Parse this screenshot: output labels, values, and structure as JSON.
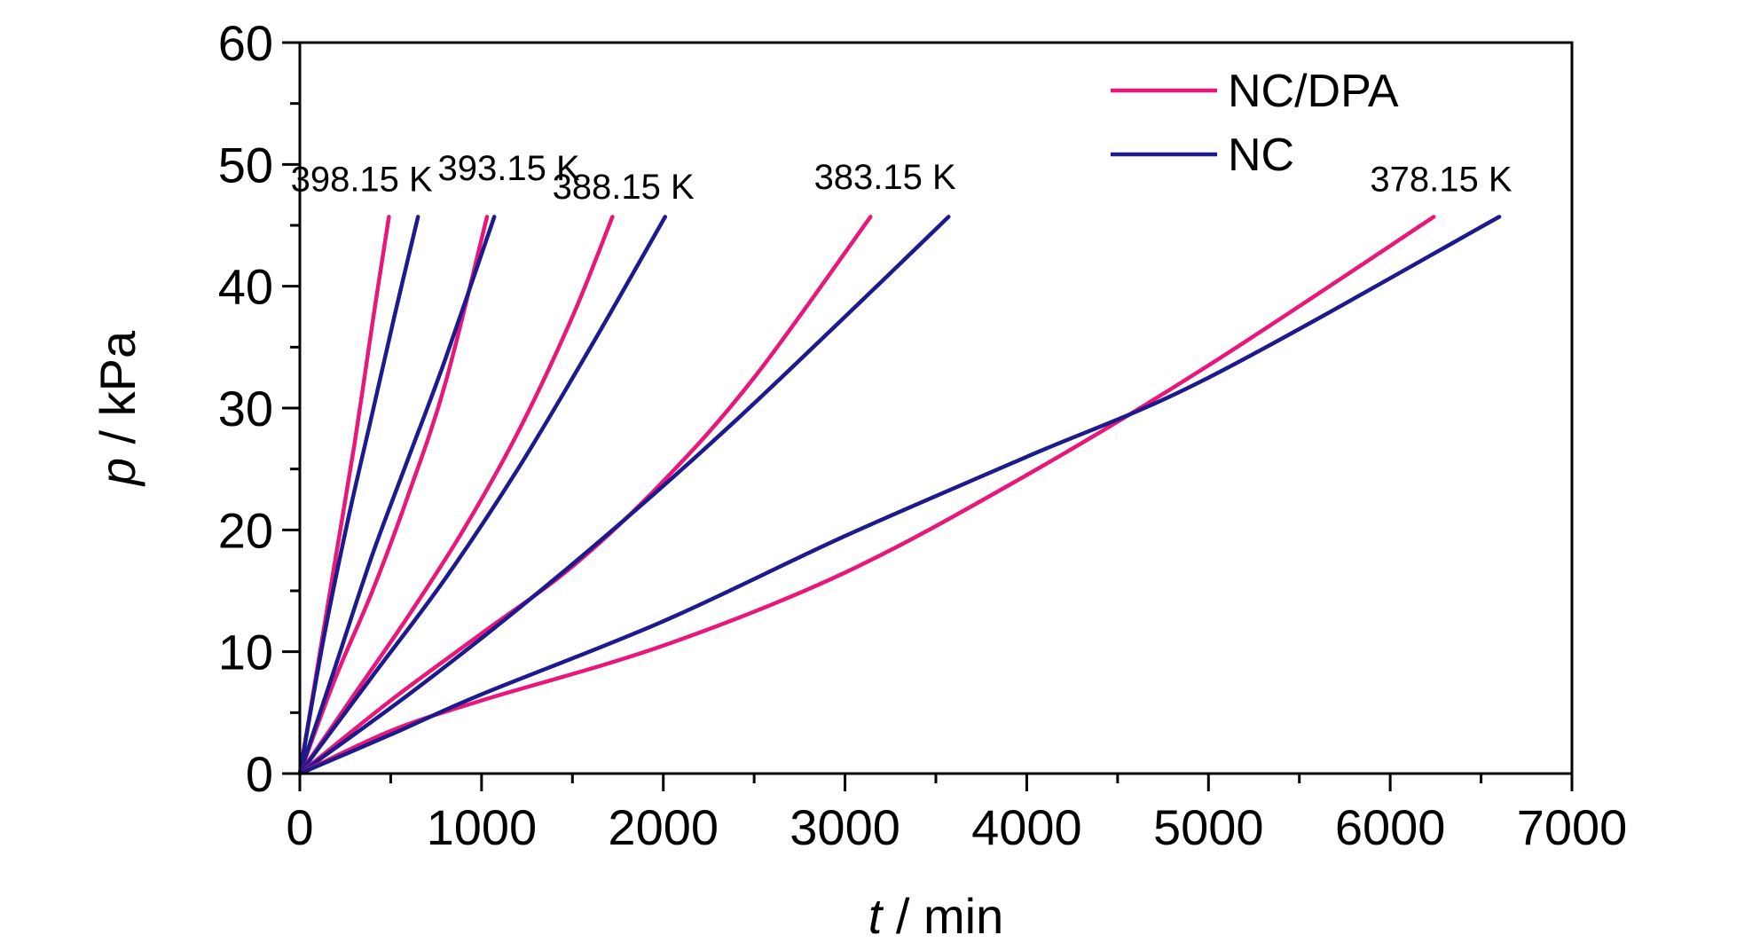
{
  "chart_data": {
    "type": "line",
    "xlabel": {
      "var": "t",
      "unit": " / min"
    },
    "ylabel": {
      "var": "p",
      "unit": " / kPa"
    },
    "xlim": [
      0,
      7000
    ],
    "ylim": [
      0,
      60
    ],
    "x_ticks": [
      0,
      1000,
      2000,
      3000,
      4000,
      5000,
      6000,
      7000
    ],
    "y_ticks": [
      0,
      10,
      20,
      30,
      40,
      50,
      60
    ],
    "grid": false,
    "legend_position": "top-right",
    "legend": [
      {
        "name": "NC/DPA",
        "color": "#e8177a"
      },
      {
        "name": "NC",
        "color": "#1c1a8c"
      }
    ],
    "series": [
      {
        "name": "NC/DPA",
        "group": "398.15 K",
        "color": "#e8177a",
        "x": [
          0,
          100,
          200,
          300,
          400,
          490
        ],
        "y": [
          0,
          9,
          18,
          27,
          37,
          45.7
        ]
      },
      {
        "name": "NC",
        "group": "398.15 K",
        "color": "#1c1a8c",
        "x": [
          0,
          130,
          260,
          390,
          520,
          650
        ],
        "y": [
          0,
          11,
          20.5,
          29,
          37.5,
          45.7
        ]
      },
      {
        "name": "NC/DPA",
        "group": "393.15 K",
        "color": "#e8177a",
        "x": [
          0,
          200,
          400,
          600,
          800,
          1030
        ],
        "y": [
          0,
          8,
          15,
          23,
          32,
          45.7
        ]
      },
      {
        "name": "NC",
        "group": "393.15 K",
        "color": "#1c1a8c",
        "x": [
          0,
          200,
          400,
          600,
          800,
          1070
        ],
        "y": [
          0,
          9,
          18,
          26,
          34,
          45.7
        ]
      },
      {
        "name": "NC/DPA",
        "group": "388.15 K",
        "color": "#e8177a",
        "x": [
          0,
          300,
          600,
          900,
          1200,
          1500,
          1720
        ],
        "y": [
          0,
          6.5,
          13,
          20,
          28,
          37.5,
          45.7
        ]
      },
      {
        "name": "NC",
        "group": "388.15 K",
        "color": "#1c1a8c",
        "x": [
          0,
          400,
          800,
          1200,
          1600,
          2010
        ],
        "y": [
          0,
          8,
          16,
          25,
          35,
          45.7
        ]
      },
      {
        "name": "NC/DPA",
        "group": "383.15 K",
        "color": "#e8177a",
        "x": [
          0,
          500,
          1000,
          1500,
          2000,
          2500,
          3140
        ],
        "y": [
          0,
          6,
          11.5,
          17,
          24,
          32.5,
          45.7
        ]
      },
      {
        "name": "NC",
        "group": "383.15 K",
        "color": "#1c1a8c",
        "x": [
          0,
          600,
          1200,
          1800,
          2400,
          3000,
          3570
        ],
        "y": [
          0,
          6.5,
          13.5,
          21,
          29,
          37.5,
          45.7
        ]
      },
      {
        "name": "NC/DPA",
        "group": "378.15 K",
        "color": "#e8177a",
        "x": [
          0,
          500,
          1000,
          2000,
          3000,
          4000,
          5000,
          6240
        ],
        "y": [
          0,
          3.5,
          6,
          10.5,
          16.5,
          24.5,
          33.5,
          45.7
        ]
      },
      {
        "name": "NC",
        "group": "378.15 K",
        "color": "#1c1a8c",
        "x": [
          0,
          500,
          1000,
          2000,
          3000,
          4000,
          5000,
          6600
        ],
        "y": [
          0,
          3.2,
          6.5,
          12.5,
          19.5,
          26,
          32.5,
          45.7
        ]
      }
    ],
    "annotations": [
      {
        "text": "398.15 K",
        "x": 340,
        "y": 47.8
      },
      {
        "text": "393.15 K",
        "x": 1150,
        "y": 48.7
      },
      {
        "text": "388.15 K",
        "x": 1780,
        "y": 47.2
      },
      {
        "text": "383.15 K",
        "x": 3220,
        "y": 48.0
      },
      {
        "text": "378.15 K",
        "x": 6280,
        "y": 47.8
      }
    ]
  }
}
